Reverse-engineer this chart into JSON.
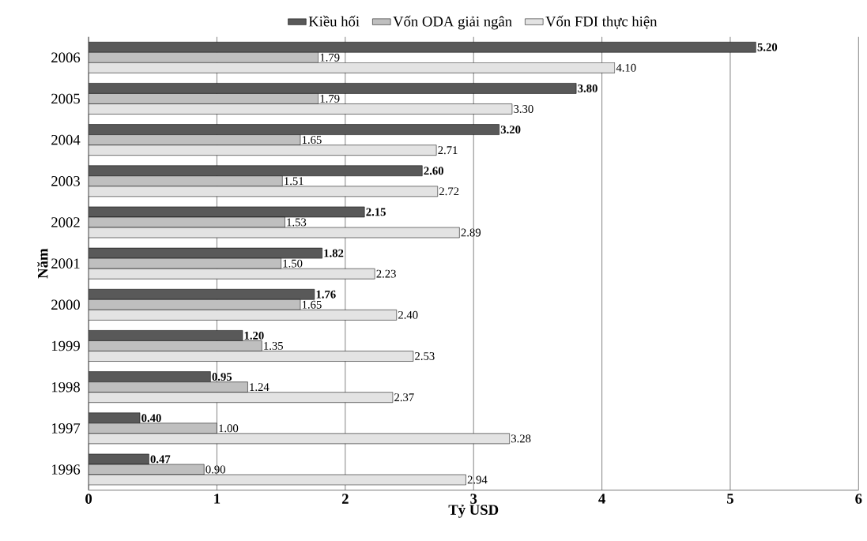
{
  "chart_data": {
    "type": "bar",
    "orientation": "horizontal",
    "xlabel": "Tỷ USD",
    "ylabel": "Năm",
    "categories": [
      "2006",
      "2005",
      "2004",
      "2003",
      "2002",
      "2001",
      "2000",
      "1999",
      "1998",
      "1997",
      "1996"
    ],
    "series": [
      {
        "name": "Kiều hối",
        "color": "#595959",
        "values": [
          5.2,
          3.8,
          3.2,
          2.6,
          2.15,
          1.82,
          1.76,
          1.2,
          0.95,
          0.4,
          0.47
        ],
        "value_labels": [
          "5.20",
          "3.80",
          "3.20",
          "2.60",
          "2.15",
          "1.82",
          "1.76",
          "1.20",
          "0.95",
          "0.40",
          "0.47"
        ]
      },
      {
        "name": "Vốn ODA giải ngân",
        "color": "#bfbfbf",
        "values": [
          1.79,
          1.79,
          1.65,
          1.51,
          1.53,
          1.5,
          1.65,
          1.35,
          1.24,
          1.0,
          0.9
        ],
        "value_labels": [
          "1.79",
          "1.79",
          "1.65",
          "1.51",
          "1.53",
          "1.50",
          "1.65",
          "1.35",
          "1.24",
          "1.00",
          "0.90"
        ]
      },
      {
        "name": "Vốn FDI thực hiện",
        "color": "#e3e3e3",
        "values": [
          4.1,
          3.3,
          2.71,
          2.72,
          2.89,
          2.23,
          2.4,
          2.53,
          2.37,
          3.28,
          2.94
        ],
        "value_labels": [
          "4.10",
          "3.30",
          "2.71",
          "2.72",
          "2.89",
          "2.23",
          "2.40",
          "2.53",
          "2.37",
          "3.28",
          "2.94"
        ]
      }
    ],
    "xlim": [
      0,
      6
    ],
    "xticks": [
      0,
      1,
      2,
      3,
      4,
      5,
      6
    ],
    "grid": "x",
    "legend": "top"
  }
}
